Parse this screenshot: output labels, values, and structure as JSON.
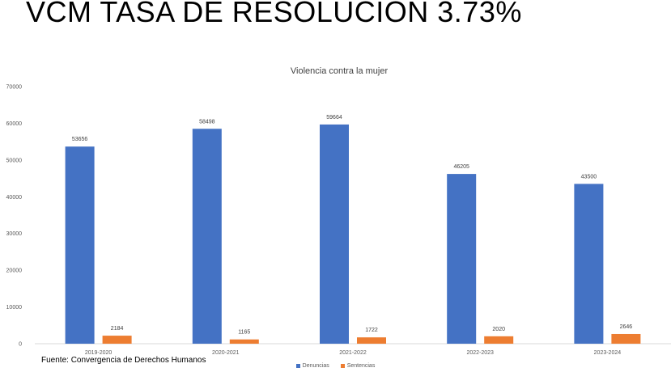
{
  "slide": {
    "title": "VCM TASA DE RESOLUCION 3.73%",
    "source": "Fuente: Convergencia de Derechos Humanos"
  },
  "chart_data": {
    "type": "bar",
    "title": "Violencia contra la mujer",
    "xlabel": "",
    "ylabel": "",
    "categories": [
      "2019-2020",
      "2020-2021",
      "2021-2022",
      "2022-2023",
      "2023-2024"
    ],
    "series": [
      {
        "name": "Denuncias",
        "values": [
          53656,
          58498,
          59664,
          46205,
          43500
        ],
        "color": "#4472C4"
      },
      {
        "name": "Sentencias",
        "values": [
          2184,
          1165,
          1722,
          2020,
          2646
        ],
        "color": "#ED7D31"
      }
    ],
    "ylim": [
      0,
      70000
    ],
    "yticks": [
      0,
      10000,
      20000,
      30000,
      40000,
      50000,
      60000,
      70000
    ],
    "grid": false,
    "legend": "bottom",
    "data_labels": true
  }
}
